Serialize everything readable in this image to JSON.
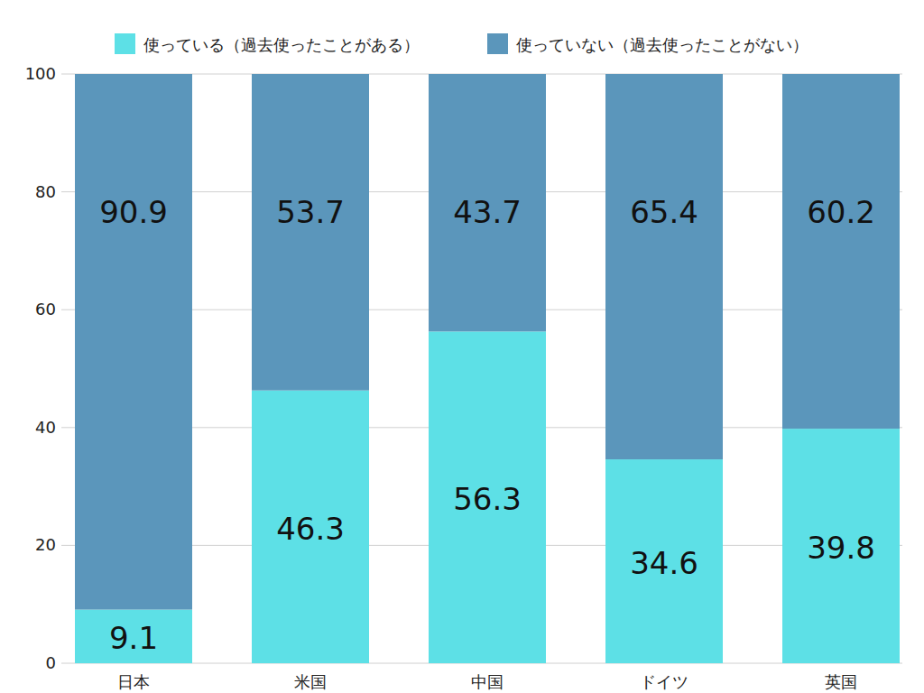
{
  "chart_data": {
    "type": "bar",
    "stacked": true,
    "data_labels": true,
    "grid": true,
    "legend": "top",
    "categories": [
      "日本",
      "米国",
      "中国",
      "ドイツ",
      "英国"
    ],
    "series": [
      {
        "name": "使っている（過去使ったことがある）",
        "color": "#5de0e6",
        "values": [
          9.1,
          46.3,
          56.3,
          34.6,
          39.8
        ]
      },
      {
        "name": "使っていない（過去使ったことがない）",
        "color": "#5b96bb",
        "values": [
          90.9,
          53.7,
          43.7,
          65.4,
          60.2
        ]
      }
    ],
    "ylim": [
      0,
      100
    ],
    "yticks": [
      0,
      20,
      40,
      60,
      80,
      100
    ]
  }
}
